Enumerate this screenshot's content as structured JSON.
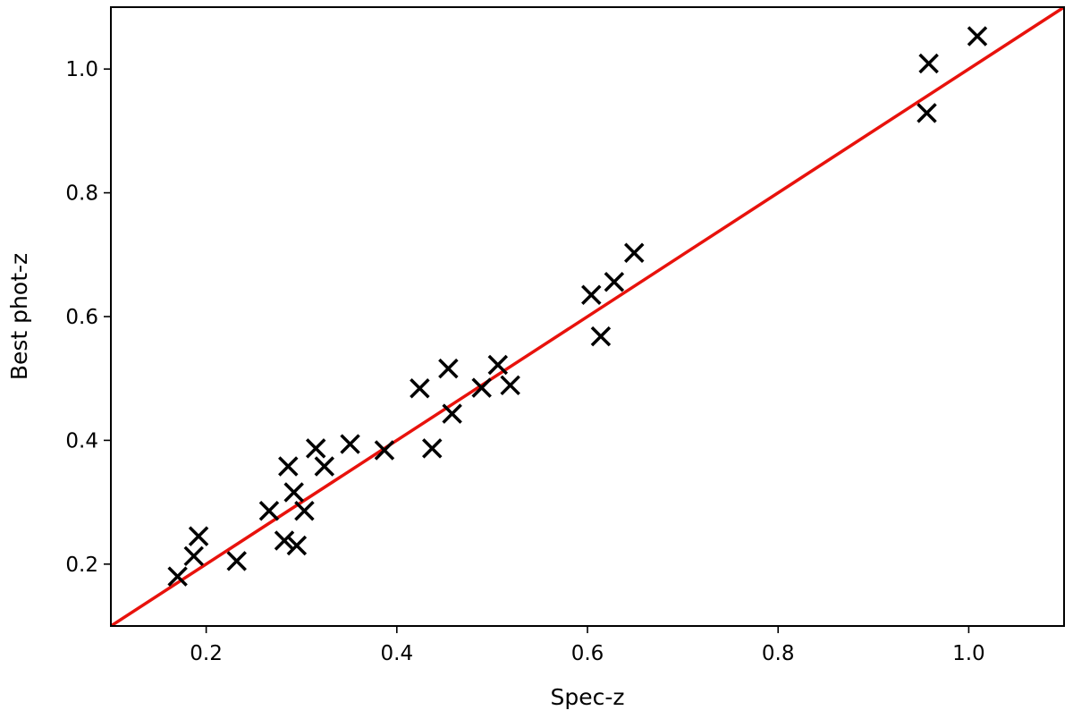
{
  "chart_data": {
    "type": "scatter",
    "title": "",
    "xlabel": "Spec-z",
    "ylabel": "Best phot-z",
    "xlim": [
      0.1,
      1.1
    ],
    "ylim": [
      0.1,
      1.1
    ],
    "xticks": [
      0.2,
      0.4,
      0.6,
      0.8,
      1.0
    ],
    "yticks": [
      0.2,
      0.4,
      0.6,
      0.8,
      1.0
    ],
    "tick_labels_x": [
      "0.2",
      "0.4",
      "0.6",
      "0.8",
      "1.0"
    ],
    "tick_labels_y": [
      "0.2",
      "0.4",
      "0.6",
      "0.8",
      "1.0"
    ],
    "grid": false,
    "legend": "none",
    "marker": "x",
    "marker_color": "#000000",
    "line_color": "#e8120c",
    "points": [
      {
        "x": 0.17,
        "y": 0.18
      },
      {
        "x": 0.187,
        "y": 0.213
      },
      {
        "x": 0.192,
        "y": 0.245
      },
      {
        "x": 0.232,
        "y": 0.205
      },
      {
        "x": 0.266,
        "y": 0.286
      },
      {
        "x": 0.282,
        "y": 0.238
      },
      {
        "x": 0.286,
        "y": 0.358
      },
      {
        "x": 0.292,
        "y": 0.316
      },
      {
        "x": 0.295,
        "y": 0.23
      },
      {
        "x": 0.303,
        "y": 0.286
      },
      {
        "x": 0.315,
        "y": 0.387
      },
      {
        "x": 0.324,
        "y": 0.358
      },
      {
        "x": 0.351,
        "y": 0.394
      },
      {
        "x": 0.387,
        "y": 0.384
      },
      {
        "x": 0.424,
        "y": 0.484
      },
      {
        "x": 0.437,
        "y": 0.387
      },
      {
        "x": 0.454,
        "y": 0.516
      },
      {
        "x": 0.458,
        "y": 0.443
      },
      {
        "x": 0.489,
        "y": 0.485
      },
      {
        "x": 0.506,
        "y": 0.522
      },
      {
        "x": 0.519,
        "y": 0.489
      },
      {
        "x": 0.604,
        "y": 0.635
      },
      {
        "x": 0.614,
        "y": 0.568
      },
      {
        "x": 0.628,
        "y": 0.656
      },
      {
        "x": 0.649,
        "y": 0.703
      },
      {
        "x": 0.956,
        "y": 0.929
      },
      {
        "x": 0.958,
        "y": 1.009
      },
      {
        "x": 1.009,
        "y": 1.053
      }
    ],
    "reference_line": {
      "x": [
        0.1,
        1.1
      ],
      "y": [
        0.1,
        1.1
      ]
    }
  }
}
